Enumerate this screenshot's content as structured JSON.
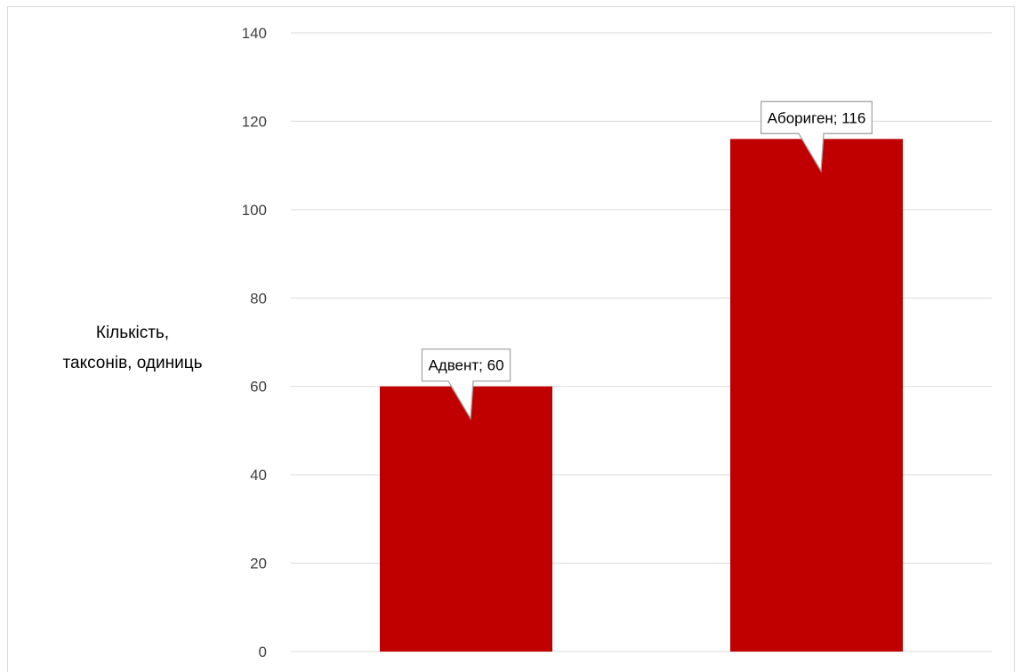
{
  "chart_data": {
    "type": "bar",
    "categories": [
      "Адвент",
      "Абориген"
    ],
    "values": [
      60,
      116
    ],
    "data_labels": [
      "Адвент; 60",
      "Абориген; 116"
    ],
    "title": "",
    "xlabel": "",
    "ylabel_lines": [
      "Кількість,",
      "таксонів, одиниць"
    ],
    "ylim": [
      0,
      140
    ],
    "yticks": [
      0,
      20,
      40,
      60,
      80,
      100,
      120,
      140
    ],
    "ytick_labels": [
      "0",
      "20",
      "40",
      "60",
      "80",
      "100",
      "120",
      "140"
    ],
    "grid": true,
    "legend": "none",
    "colors": {
      "bar": "#c00000",
      "grid": "#d9d9d9",
      "callout_border": "#a6a6a6"
    }
  }
}
